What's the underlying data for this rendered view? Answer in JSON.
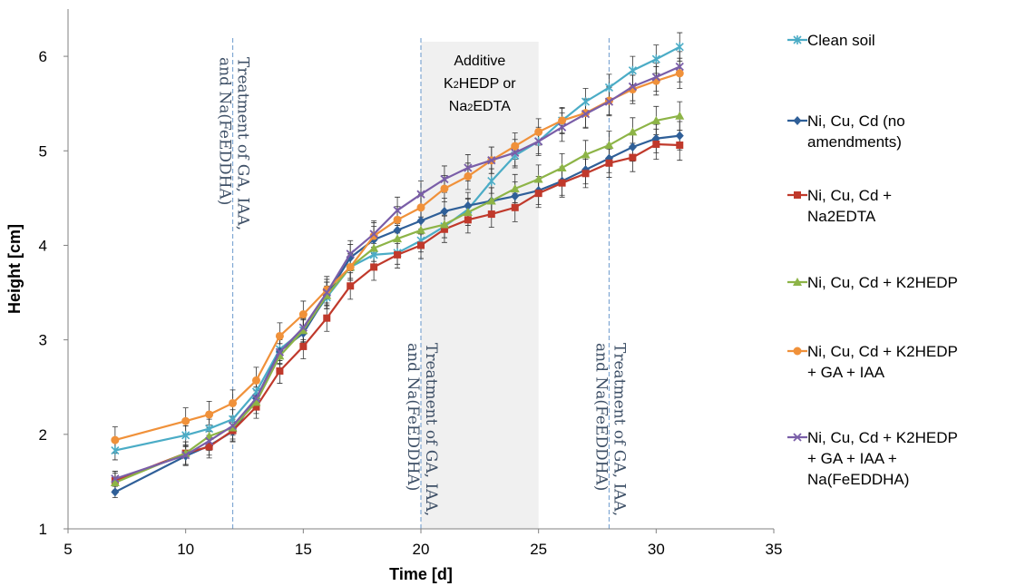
{
  "chart_data": {
    "type": "line",
    "xlabel": "Time [d]",
    "ylabel": "Height [cm]",
    "xlim": [
      5,
      35
    ],
    "ylim": [
      1,
      6.5
    ],
    "x_ticks": [
      5,
      10,
      15,
      20,
      25,
      30,
      35
    ],
    "y_ticks": [
      1,
      2,
      3,
      4,
      5,
      6
    ],
    "grid": false,
    "legend_position": "right",
    "x": [
      7,
      10,
      11,
      12,
      13,
      14,
      15,
      16,
      17,
      18,
      19,
      20,
      21,
      22,
      23,
      24,
      25,
      26,
      27,
      28,
      29,
      30,
      31
    ],
    "series": [
      {
        "name": "Clean soil",
        "color": "#4bacc6",
        "marker": "cross",
        "values": [
          1.83,
          1.99,
          2.06,
          2.16,
          2.45,
          2.9,
          3.1,
          3.45,
          3.77,
          3.9,
          3.92,
          4.05,
          4.2,
          4.38,
          4.68,
          4.95,
          5.1,
          5.32,
          5.52,
          5.67,
          5.85,
          5.97,
          6.1
        ],
        "errors": [
          0.1,
          0.1,
          0.1,
          0.1,
          0.12,
          0.12,
          0.12,
          0.12,
          0.12,
          0.12,
          0.12,
          0.12,
          0.12,
          0.12,
          0.13,
          0.13,
          0.13,
          0.13,
          0.14,
          0.14,
          0.15,
          0.15,
          0.15
        ]
      },
      {
        "name": "Ni, Cu, Cd (no amendments)",
        "color": "#2f5f98",
        "marker": "diamond",
        "values": [
          1.39,
          1.77,
          1.88,
          2.03,
          2.38,
          2.88,
          3.07,
          3.47,
          3.87,
          4.06,
          4.16,
          4.26,
          4.36,
          4.42,
          4.47,
          4.52,
          4.58,
          4.68,
          4.8,
          4.92,
          5.04,
          5.13,
          5.16
        ],
        "errors": [
          0.06,
          0.1,
          0.1,
          0.1,
          0.12,
          0.13,
          0.14,
          0.14,
          0.14,
          0.14,
          0.14,
          0.14,
          0.14,
          0.14,
          0.14,
          0.15,
          0.15,
          0.15,
          0.15,
          0.15,
          0.15,
          0.15,
          0.15
        ]
      },
      {
        "name": "Ni, Cu, Cd + Na2EDTA",
        "color": "#c0392b",
        "marker": "square",
        "values": [
          1.51,
          1.8,
          1.87,
          2.04,
          2.29,
          2.67,
          2.93,
          3.23,
          3.57,
          3.77,
          3.9,
          4.0,
          4.17,
          4.27,
          4.33,
          4.4,
          4.55,
          4.66,
          4.76,
          4.87,
          4.93,
          5.07,
          5.06
        ],
        "errors": [
          0.1,
          0.12,
          0.12,
          0.12,
          0.12,
          0.13,
          0.13,
          0.14,
          0.14,
          0.14,
          0.14,
          0.14,
          0.14,
          0.14,
          0.14,
          0.15,
          0.15,
          0.15,
          0.15,
          0.15,
          0.15,
          0.16,
          0.16
        ]
      },
      {
        "name": "Ni, Cu, Cd + K2HEDP",
        "color": "#8db447",
        "marker": "triangle",
        "values": [
          1.49,
          1.8,
          1.98,
          2.07,
          2.34,
          2.83,
          3.1,
          3.47,
          3.77,
          3.97,
          4.07,
          4.16,
          4.22,
          4.35,
          4.47,
          4.6,
          4.7,
          4.82,
          4.96,
          5.06,
          5.2,
          5.32,
          5.37
        ],
        "errors": [
          0.1,
          0.12,
          0.12,
          0.12,
          0.12,
          0.13,
          0.13,
          0.14,
          0.14,
          0.14,
          0.14,
          0.14,
          0.14,
          0.14,
          0.14,
          0.15,
          0.15,
          0.15,
          0.15,
          0.15,
          0.15,
          0.15,
          0.15
        ]
      },
      {
        "name": "Ni, Cu, Cd + K2HEDP + GA + IAA",
        "color": "#f0913a",
        "marker": "circle",
        "values": [
          1.94,
          2.14,
          2.21,
          2.33,
          2.57,
          3.04,
          3.27,
          3.53,
          3.77,
          4.1,
          4.27,
          4.4,
          4.6,
          4.73,
          4.9,
          5.05,
          5.2,
          5.32,
          5.4,
          5.53,
          5.65,
          5.74,
          5.82
        ],
        "errors": [
          0.14,
          0.14,
          0.14,
          0.14,
          0.14,
          0.14,
          0.14,
          0.14,
          0.14,
          0.14,
          0.14,
          0.14,
          0.14,
          0.14,
          0.14,
          0.14,
          0.14,
          0.14,
          0.15,
          0.15,
          0.15,
          0.15,
          0.16
        ]
      },
      {
        "name": "Ni, Cu, Cd + K2HEDP + GA + IAA + Na(FeEDDHA)",
        "color": "#7a5ea8",
        "marker": "x",
        "values": [
          1.53,
          1.78,
          1.93,
          2.09,
          2.38,
          2.87,
          3.13,
          3.5,
          3.91,
          4.12,
          4.37,
          4.54,
          4.7,
          4.82,
          4.9,
          4.98,
          5.1,
          5.25,
          5.39,
          5.52,
          5.68,
          5.78,
          5.89
        ],
        "errors": [
          0.08,
          0.1,
          0.1,
          0.1,
          0.12,
          0.13,
          0.13,
          0.14,
          0.14,
          0.14,
          0.14,
          0.14,
          0.14,
          0.14,
          0.14,
          0.14,
          0.15,
          0.15,
          0.15,
          0.15,
          0.15,
          0.15,
          0.16
        ]
      }
    ],
    "treatment_lines": [
      {
        "x": 12,
        "label_line1": "Treatment of GA, IAA,",
        "label_line2": "and Na(FeEDDHA)"
      },
      {
        "x": 20,
        "label_line1": "Treatment of GA, IAA,",
        "label_line2": "and Na(FeEDDHA)"
      },
      {
        "x": 28,
        "label_line1": "Treatment of GA, IAA,",
        "label_line2": "and Na(FeEDDHA)"
      }
    ],
    "shaded_region": {
      "x_start": 20,
      "x_end": 25,
      "color": "#f0f0f0",
      "label_line1": "Additive",
      "label_line2_pre": "K",
      "label_line2_sub": "2",
      "label_line2_post": "HEDP or",
      "label_line3_pre": "Na",
      "label_line3_sub": "2",
      "label_line3_post": "EDTA"
    }
  },
  "legend": {
    "entries": [
      {
        "lines": [
          "Clean soil"
        ]
      },
      {
        "lines": [
          "Ni, Cu, Cd (no",
          "amendments)"
        ]
      },
      {
        "lines": [
          "Ni, Cu, Cd +",
          "Na2EDTA"
        ]
      },
      {
        "lines": [
          "Ni, Cu, Cd + K2HEDP"
        ]
      },
      {
        "lines": [
          "Ni, Cu, Cd + K2HEDP",
          "+ GA + IAA"
        ]
      },
      {
        "lines": [
          "Ni, Cu, Cd + K2HEDP",
          "+ GA + IAA +",
          "Na(FeEDDHA)"
        ]
      }
    ]
  }
}
